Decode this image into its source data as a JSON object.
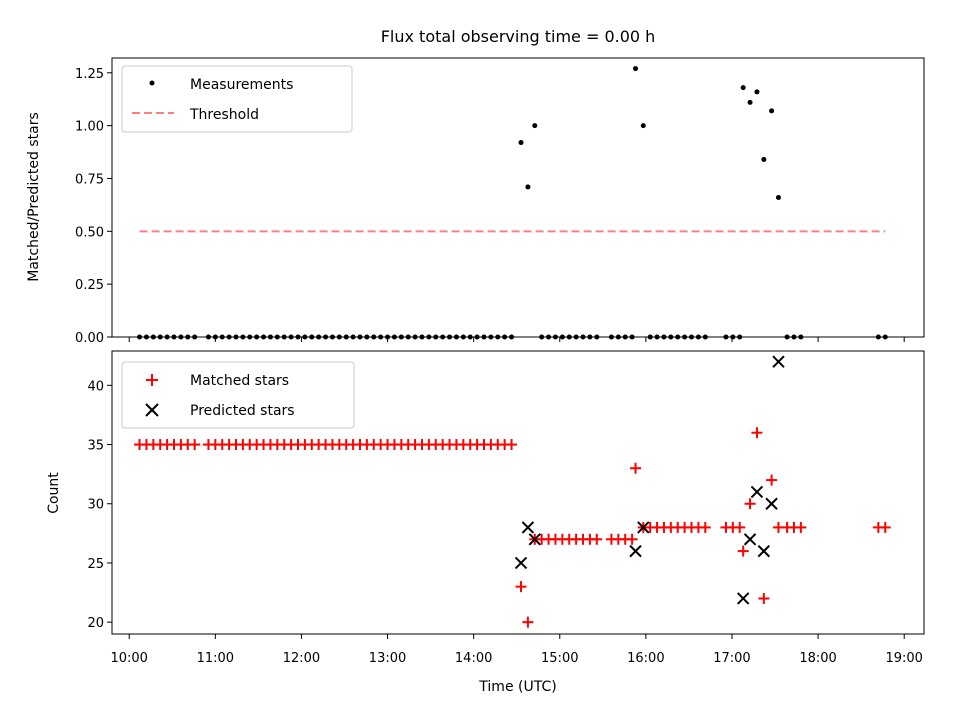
{
  "title": "Flux total observing time = 0.00 h",
  "xlabel": "Time (UTC)",
  "x_ticks": [
    "10:00",
    "11:00",
    "12:00",
    "13:00",
    "14:00",
    "15:00",
    "16:00",
    "17:00",
    "18:00",
    "19:00"
  ],
  "colors": {
    "measurements": "#000000",
    "threshold": "#ff7f7f",
    "matched": "#ff0000",
    "predicted": "#000000"
  },
  "chart_data": [
    {
      "type": "scatter",
      "ylabel": "Matched/Predicted stars",
      "ylim": [
        0,
        1.32
      ],
      "y_ticks": [
        "0.00",
        "0.25",
        "0.50",
        "0.75",
        "1.00",
        "1.25"
      ],
      "xlim_hours": [
        9.8,
        19.23
      ],
      "grid": false,
      "legend_placement": "top-left",
      "series": [
        {
          "name": "Measurements",
          "marker": "dot",
          "points": [
            [
              10.12,
              0
            ],
            [
              10.2,
              0
            ],
            [
              10.28,
              0
            ],
            [
              10.36,
              0
            ],
            [
              10.44,
              0
            ],
            [
              10.52,
              0
            ],
            [
              10.6,
              0
            ],
            [
              10.68,
              0
            ],
            [
              10.76,
              0
            ],
            [
              10.92,
              0
            ],
            [
              11.0,
              0
            ],
            [
              11.08,
              0
            ],
            [
              11.16,
              0
            ],
            [
              11.24,
              0
            ],
            [
              11.32,
              0
            ],
            [
              11.4,
              0
            ],
            [
              11.48,
              0
            ],
            [
              11.56,
              0
            ],
            [
              11.64,
              0
            ],
            [
              11.72,
              0
            ],
            [
              11.8,
              0
            ],
            [
              11.88,
              0
            ],
            [
              11.96,
              0
            ],
            [
              12.04,
              0
            ],
            [
              12.12,
              0
            ],
            [
              12.2,
              0
            ],
            [
              12.28,
              0
            ],
            [
              12.36,
              0
            ],
            [
              12.44,
              0
            ],
            [
              12.52,
              0
            ],
            [
              12.6,
              0
            ],
            [
              12.68,
              0
            ],
            [
              12.76,
              0
            ],
            [
              12.84,
              0
            ],
            [
              12.92,
              0
            ],
            [
              13.0,
              0
            ],
            [
              13.08,
              0
            ],
            [
              13.16,
              0
            ],
            [
              13.24,
              0
            ],
            [
              13.32,
              0
            ],
            [
              13.4,
              0
            ],
            [
              13.48,
              0
            ],
            [
              13.56,
              0
            ],
            [
              13.64,
              0
            ],
            [
              13.72,
              0
            ],
            [
              13.8,
              0
            ],
            [
              13.88,
              0
            ],
            [
              13.96,
              0
            ],
            [
              14.04,
              0
            ],
            [
              14.12,
              0
            ],
            [
              14.2,
              0
            ],
            [
              14.28,
              0
            ],
            [
              14.36,
              0
            ],
            [
              14.44,
              0
            ],
            [
              14.55,
              0.92
            ],
            [
              14.63,
              0.71
            ],
            [
              14.71,
              1.0
            ],
            [
              14.79,
              0
            ],
            [
              14.87,
              0
            ],
            [
              14.95,
              0
            ],
            [
              15.03,
              0
            ],
            [
              15.11,
              0
            ],
            [
              15.19,
              0
            ],
            [
              15.27,
              0
            ],
            [
              15.35,
              0
            ],
            [
              15.43,
              0
            ],
            [
              15.6,
              0
            ],
            [
              15.68,
              0
            ],
            [
              15.76,
              0
            ],
            [
              15.84,
              0
            ],
            [
              15.88,
              1.27
            ],
            [
              15.97,
              1.0
            ],
            [
              16.05,
              0
            ],
            [
              16.13,
              0
            ],
            [
              16.21,
              0
            ],
            [
              16.29,
              0
            ],
            [
              16.37,
              0
            ],
            [
              16.45,
              0
            ],
            [
              16.53,
              0
            ],
            [
              16.61,
              0
            ],
            [
              16.69,
              0
            ],
            [
              16.93,
              0
            ],
            [
              17.01,
              0
            ],
            [
              17.09,
              0
            ],
            [
              17.13,
              1.18
            ],
            [
              17.21,
              1.11
            ],
            [
              17.29,
              1.16
            ],
            [
              17.37,
              0.84
            ],
            [
              17.46,
              1.07
            ],
            [
              17.54,
              0.66
            ],
            [
              17.64,
              0
            ],
            [
              17.72,
              0
            ],
            [
              17.8,
              0
            ],
            [
              18.7,
              0
            ],
            [
              18.78,
              0
            ]
          ]
        },
        {
          "name": "Threshold",
          "line": "dashed",
          "points": [
            [
              10.12,
              0.5
            ],
            [
              18.78,
              0.5
            ]
          ]
        }
      ]
    },
    {
      "type": "scatter",
      "ylabel": "Count",
      "ylim": [
        19.0,
        42.9
      ],
      "y_ticks": [
        "20",
        "25",
        "30",
        "35",
        "40"
      ],
      "xlim_hours": [
        9.8,
        19.23
      ],
      "grid": false,
      "legend_placement": "top-left",
      "series": [
        {
          "name": "Matched stars",
          "marker": "plus",
          "points": [
            [
              10.12,
              35
            ],
            [
              10.2,
              35
            ],
            [
              10.28,
              35
            ],
            [
              10.36,
              35
            ],
            [
              10.44,
              35
            ],
            [
              10.52,
              35
            ],
            [
              10.6,
              35
            ],
            [
              10.68,
              35
            ],
            [
              10.76,
              35
            ],
            [
              10.92,
              35
            ],
            [
              11.0,
              35
            ],
            [
              11.08,
              35
            ],
            [
              11.16,
              35
            ],
            [
              11.24,
              35
            ],
            [
              11.32,
              35
            ],
            [
              11.4,
              35
            ],
            [
              11.48,
              35
            ],
            [
              11.56,
              35
            ],
            [
              11.64,
              35
            ],
            [
              11.72,
              35
            ],
            [
              11.8,
              35
            ],
            [
              11.88,
              35
            ],
            [
              11.96,
              35
            ],
            [
              12.04,
              35
            ],
            [
              12.12,
              35
            ],
            [
              12.2,
              35
            ],
            [
              12.28,
              35
            ],
            [
              12.36,
              35
            ],
            [
              12.44,
              35
            ],
            [
              12.52,
              35
            ],
            [
              12.6,
              35
            ],
            [
              12.68,
              35
            ],
            [
              12.76,
              35
            ],
            [
              12.84,
              35
            ],
            [
              12.92,
              35
            ],
            [
              13.0,
              35
            ],
            [
              13.08,
              35
            ],
            [
              13.16,
              35
            ],
            [
              13.24,
              35
            ],
            [
              13.32,
              35
            ],
            [
              13.4,
              35
            ],
            [
              13.48,
              35
            ],
            [
              13.56,
              35
            ],
            [
              13.64,
              35
            ],
            [
              13.72,
              35
            ],
            [
              13.8,
              35
            ],
            [
              13.88,
              35
            ],
            [
              13.96,
              35
            ],
            [
              14.04,
              35
            ],
            [
              14.12,
              35
            ],
            [
              14.2,
              35
            ],
            [
              14.28,
              35
            ],
            [
              14.36,
              35
            ],
            [
              14.44,
              35
            ],
            [
              14.55,
              23
            ],
            [
              14.63,
              20
            ],
            [
              14.71,
              27
            ],
            [
              14.79,
              27
            ],
            [
              14.87,
              27
            ],
            [
              14.95,
              27
            ],
            [
              15.03,
              27
            ],
            [
              15.11,
              27
            ],
            [
              15.19,
              27
            ],
            [
              15.27,
              27
            ],
            [
              15.35,
              27
            ],
            [
              15.43,
              27
            ],
            [
              15.6,
              27
            ],
            [
              15.68,
              27
            ],
            [
              15.76,
              27
            ],
            [
              15.84,
              27
            ],
            [
              15.88,
              33
            ],
            [
              15.97,
              28
            ],
            [
              16.05,
              28
            ],
            [
              16.13,
              28
            ],
            [
              16.21,
              28
            ],
            [
              16.29,
              28
            ],
            [
              16.37,
              28
            ],
            [
              16.45,
              28
            ],
            [
              16.53,
              28
            ],
            [
              16.61,
              28
            ],
            [
              16.69,
              28
            ],
            [
              16.93,
              28
            ],
            [
              17.01,
              28
            ],
            [
              17.09,
              28
            ],
            [
              17.13,
              26
            ],
            [
              17.21,
              30
            ],
            [
              17.29,
              36
            ],
            [
              17.37,
              22
            ],
            [
              17.46,
              32
            ],
            [
              17.54,
              28
            ],
            [
              17.64,
              28
            ],
            [
              17.72,
              28
            ],
            [
              17.8,
              28
            ],
            [
              18.7,
              28
            ],
            [
              18.78,
              28
            ]
          ]
        },
        {
          "name": "Predicted stars",
          "marker": "x",
          "points": [
            [
              14.55,
              25
            ],
            [
              14.63,
              28
            ],
            [
              14.71,
              27
            ],
            [
              15.88,
              26
            ],
            [
              15.97,
              28
            ],
            [
              17.13,
              22
            ],
            [
              17.21,
              27
            ],
            [
              17.29,
              31
            ],
            [
              17.37,
              26
            ],
            [
              17.46,
              30
            ],
            [
              17.54,
              42
            ]
          ]
        }
      ]
    }
  ]
}
